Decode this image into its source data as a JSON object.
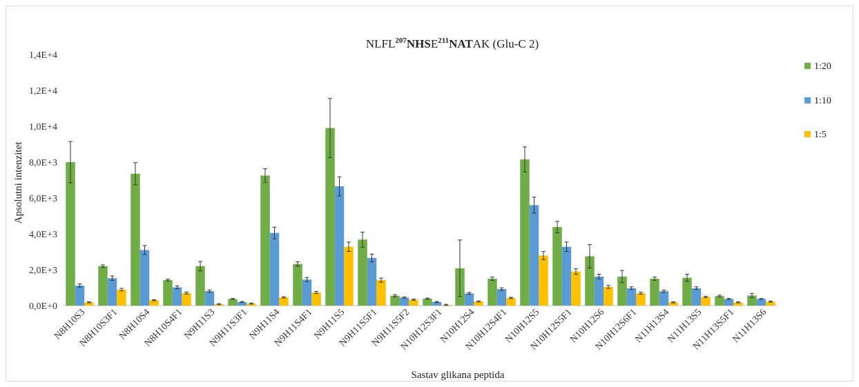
{
  "chart_data": {
    "type": "bar",
    "title": {
      "parts": [
        {
          "text": "NLFL",
          "bold": false,
          "sup": false
        },
        {
          "text": "207",
          "bold": true,
          "sup": true
        },
        {
          "text": "NHS",
          "bold": true,
          "sup": false
        },
        {
          "text": "E",
          "bold": false,
          "sup": false
        },
        {
          "text": "211",
          "bold": true,
          "sup": true
        },
        {
          "text": "NAT",
          "bold": true,
          "sup": false
        },
        {
          "text": "AK (Glu-C 2)",
          "bold": false,
          "sup": false
        }
      ]
    },
    "xlabel": "Sastav glikana peptida",
    "ylabel": "Apsolutni intenzitet",
    "ylim": [
      0,
      14000
    ],
    "ytick_values": [
      0,
      2000,
      4000,
      6000,
      8000,
      10000,
      12000,
      14000
    ],
    "ytick_labels": [
      "0,0E+0",
      "2,0E+3",
      "4,0E+3",
      "6,0E+3",
      "8,0E+3",
      "1,0E+4",
      "1,2E+4",
      "1,4E+4"
    ],
    "legend_position": "right",
    "categories": [
      "N8H10S3",
      "N8H10S3F1",
      "N8H10S4",
      "N8H10S4F1",
      "N9H11S3",
      "N9H11S3F1",
      "N9H11S4",
      "N9H11S4F1",
      "N9H11S5",
      "N9H11S5F1",
      "N9H11S5F2",
      "N10H12S3F1",
      "N10H12S4",
      "N10H12S4F1",
      "N10H12S5",
      "N10H12S5F1",
      "N10H12S6",
      "N10H12S6F1",
      "N11H13S4",
      "N11H13S5",
      "N11H13S5F1",
      "N11H13S6"
    ],
    "series": [
      {
        "name": "1:20",
        "color": "#70ad47",
        "values": [
          8000,
          2200,
          7350,
          1420,
          2200,
          370,
          7250,
          2320,
          9900,
          3680,
          550,
          390,
          2080,
          1500,
          8150,
          4380,
          2750,
          1620,
          1500,
          1550,
          530,
          560
        ],
        "errors": [
          1150,
          70,
          620,
          50,
          260,
          30,
          380,
          120,
          1650,
          420,
          60,
          30,
          1580,
          90,
          700,
          320,
          650,
          340,
          90,
          200,
          50,
          120
        ]
      },
      {
        "name": "1:10",
        "color": "#5b9bd5",
        "values": [
          1120,
          1530,
          3100,
          1020,
          810,
          200,
          4050,
          1450,
          6650,
          2660,
          450,
          200,
          680,
          920,
          5600,
          3280,
          1620,
          970,
          800,
          970,
          370,
          370
        ]
      },
      {
        "name": "1:5",
        "color": "#ffc000",
        "values": [
          180,
          890,
          300,
          700,
          80,
          110,
          460,
          730,
          3280,
          1420,
          330,
          40,
          230,
          430,
          2790,
          1900,
          1040,
          690,
          180,
          480,
          180,
          220
        ]
      }
    ]
  }
}
